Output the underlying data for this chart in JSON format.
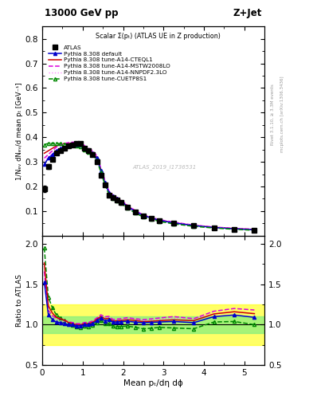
{
  "title_top": "13000 GeV pp",
  "title_right": "Z+Jet",
  "subtitle": "Scalar Σ(pₜ) (ATLAS UE in Z production)",
  "ylabel_main": "1/Nₑᵥ dNₑᵥ/d mean pₜ [GeV⁻¹]",
  "ylabel_ratio": "Ratio to ATLAS",
  "xlabel": "Mean pₜ/dη dϕ",
  "watermark": "ATLAS_2019_I1736531",
  "right_label1": "Rivet 3.1.10, ≥ 3.3M events",
  "right_label2": "mcplots.cern.ch [arXiv:1306.3436]",
  "ylim_main": [
    0.0,
    0.85
  ],
  "ylim_ratio": [
    0.5,
    2.1
  ],
  "yticks_main": [
    0.1,
    0.2,
    0.3,
    0.4,
    0.5,
    0.6,
    0.7,
    0.8
  ],
  "yticks_ratio": [
    0.5,
    1.0,
    1.5,
    2.0
  ],
  "xlim": [
    0,
    5.5
  ],
  "xticks": [
    0,
    1,
    2,
    3,
    4,
    5
  ],
  "x_data": [
    0.05,
    0.15,
    0.25,
    0.35,
    0.45,
    0.55,
    0.65,
    0.75,
    0.85,
    0.95,
    1.05,
    1.15,
    1.25,
    1.35,
    1.45,
    1.55,
    1.65,
    1.75,
    1.85,
    1.95,
    2.1,
    2.3,
    2.5,
    2.7,
    2.9,
    3.25,
    3.75,
    4.25,
    4.75,
    5.25
  ],
  "atlas_y": [
    0.19,
    0.28,
    0.31,
    0.335,
    0.345,
    0.355,
    0.365,
    0.37,
    0.375,
    0.375,
    0.355,
    0.345,
    0.33,
    0.3,
    0.245,
    0.205,
    0.165,
    0.155,
    0.145,
    0.135,
    0.115,
    0.095,
    0.08,
    0.07,
    0.06,
    0.05,
    0.04,
    0.03,
    0.025,
    0.022
  ],
  "atlas_yerr": [
    0.012,
    0.01,
    0.008,
    0.007,
    0.007,
    0.007,
    0.007,
    0.007,
    0.007,
    0.007,
    0.007,
    0.007,
    0.007,
    0.007,
    0.007,
    0.006,
    0.006,
    0.006,
    0.006,
    0.006,
    0.005,
    0.004,
    0.004,
    0.003,
    0.003,
    0.003,
    0.003,
    0.002,
    0.002,
    0.002
  ],
  "py_default_y": [
    0.29,
    0.315,
    0.33,
    0.345,
    0.355,
    0.36,
    0.365,
    0.37,
    0.37,
    0.37,
    0.355,
    0.345,
    0.335,
    0.315,
    0.265,
    0.215,
    0.175,
    0.16,
    0.15,
    0.14,
    0.12,
    0.098,
    0.082,
    0.072,
    0.062,
    0.052,
    0.041,
    0.033,
    0.028,
    0.024
  ],
  "py_cteql1_y": [
    0.335,
    0.345,
    0.355,
    0.365,
    0.37,
    0.375,
    0.375,
    0.375,
    0.375,
    0.375,
    0.36,
    0.35,
    0.34,
    0.32,
    0.27,
    0.22,
    0.178,
    0.162,
    0.152,
    0.142,
    0.122,
    0.1,
    0.083,
    0.073,
    0.063,
    0.053,
    0.042,
    0.034,
    0.029,
    0.025
  ],
  "py_mstw_y": [
    0.315,
    0.33,
    0.345,
    0.36,
    0.37,
    0.375,
    0.378,
    0.38,
    0.38,
    0.38,
    0.365,
    0.355,
    0.345,
    0.325,
    0.275,
    0.225,
    0.182,
    0.165,
    0.155,
    0.145,
    0.125,
    0.102,
    0.085,
    0.075,
    0.065,
    0.055,
    0.043,
    0.035,
    0.03,
    0.026
  ],
  "py_nnpdf_y": [
    0.305,
    0.32,
    0.335,
    0.35,
    0.36,
    0.368,
    0.373,
    0.376,
    0.376,
    0.376,
    0.362,
    0.352,
    0.342,
    0.322,
    0.272,
    0.222,
    0.18,
    0.163,
    0.153,
    0.143,
    0.123,
    0.101,
    0.084,
    0.074,
    0.064,
    0.054,
    0.043,
    0.034,
    0.029,
    0.025
  ],
  "py_cuetp_y": [
    0.37,
    0.375,
    0.375,
    0.375,
    0.374,
    0.373,
    0.37,
    0.368,
    0.365,
    0.362,
    0.348,
    0.338,
    0.328,
    0.308,
    0.258,
    0.208,
    0.168,
    0.152,
    0.142,
    0.132,
    0.113,
    0.092,
    0.076,
    0.067,
    0.058,
    0.048,
    0.038,
    0.031,
    0.026,
    0.022
  ],
  "colors": {
    "atlas": "#000000",
    "py_default": "#0000cc",
    "py_cteql1": "#cc0000",
    "py_mstw": "#dd00dd",
    "py_nnpdf": "#ff88ff",
    "py_cuetp": "#008800"
  },
  "band_yellow": [
    0.75,
    1.25
  ],
  "band_green": [
    0.9,
    1.1
  ]
}
